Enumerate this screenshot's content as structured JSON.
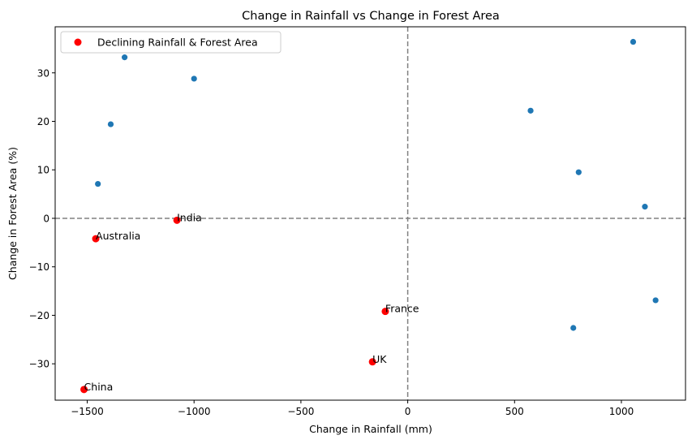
{
  "chart_data": {
    "type": "scatter",
    "title": "Change in Rainfall vs Change in Forest Area",
    "xlabel": "Change in Rainfall (mm)",
    "ylabel": "Change in Forest Area (%)",
    "xlim": [
      -1650,
      1300
    ],
    "ylim": [
      -37.5,
      39.5
    ],
    "xticks": [
      -1500,
      -1000,
      -500,
      0,
      500,
      1000
    ],
    "yticks": [
      -30,
      -20,
      -10,
      0,
      10,
      20,
      30
    ],
    "grid": false,
    "reference_lines": {
      "x": 0,
      "y": 0,
      "style": "dashed",
      "color": "#808080"
    },
    "legend": {
      "position": "top-left"
    },
    "series": [
      {
        "color": "#1f77b4",
        "points": [
          {
            "x": -1325,
            "y": 33.2
          },
          {
            "x": -1000,
            "y": 28.8
          },
          {
            "x": -1390,
            "y": 19.4
          },
          {
            "x": -1450,
            "y": 7.1
          },
          {
            "x": 1055,
            "y": 36.4
          },
          {
            "x": 575,
            "y": 22.2
          },
          {
            "x": 800,
            "y": 9.5
          },
          {
            "x": 1110,
            "y": 2.4
          },
          {
            "x": 1160,
            "y": -16.9
          },
          {
            "x": 775,
            "y": -22.6
          }
        ]
      },
      {
        "name": "Declining Rainfall & Forest Area",
        "color": "#ff0000",
        "points": [
          {
            "x": -1080,
            "y": -0.4,
            "label": "India"
          },
          {
            "x": -1460,
            "y": -4.2,
            "label": "Australia"
          },
          {
            "x": -105,
            "y": -19.2,
            "label": "France"
          },
          {
            "x": -165,
            "y": -29.6,
            "label": "UK"
          },
          {
            "x": -1515,
            "y": -35.3,
            "label": "China"
          }
        ]
      }
    ]
  }
}
